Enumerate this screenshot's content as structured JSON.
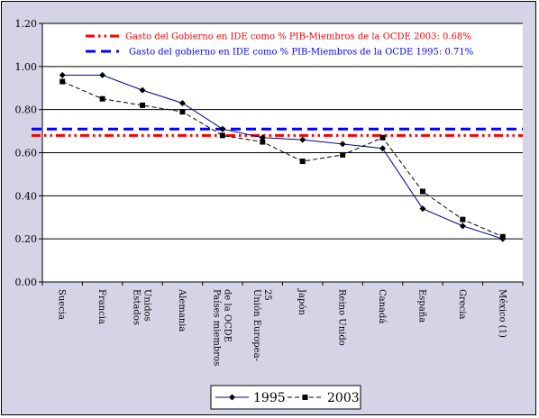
{
  "chart_data": {
    "type": "line",
    "categories": [
      "Suecia",
      "Francia",
      "Estados Unidos",
      "Alemania",
      "Países miembros de la OCDE",
      "Unión Europea-25",
      "Japón",
      "Reino Unido",
      "Canadá",
      "España",
      "Grecia",
      "México (1)"
    ],
    "category_lines": [
      [
        "Suecia"
      ],
      [
        "Francia"
      ],
      [
        "Estados",
        "Unidos"
      ],
      [
        "Alemania"
      ],
      [
        "Países miembros",
        "de la OCDE"
      ],
      [
        "Unión Europea-",
        "25"
      ],
      [
        "Japón"
      ],
      [
        "Reino Unido"
      ],
      [
        "Canadá"
      ],
      [
        "España"
      ],
      [
        "Grecia"
      ],
      [
        "México (1)"
      ]
    ],
    "series": [
      {
        "name": "1995",
        "color": "#00008b",
        "marker": "diamond",
        "style": "solid",
        "values": [
          0.96,
          0.96,
          0.89,
          0.83,
          0.71,
          0.67,
          0.66,
          0.64,
          0.62,
          0.34,
          0.26,
          0.2
        ]
      },
      {
        "name": "2003",
        "color": "#000000",
        "marker": "square",
        "style": "dashed",
        "values": [
          0.93,
          0.85,
          0.82,
          0.79,
          0.68,
          0.65,
          0.56,
          0.59,
          0.67,
          0.42,
          0.29,
          0.21
        ]
      }
    ],
    "reference_lines": [
      {
        "label": "Gasto del Gobierno en IDE como % PIB-Miembros de la OCDE 2003: 0.68%",
        "value": 0.68,
        "color": "#ff0000",
        "style": "dash-dot-dot"
      },
      {
        "label": "Gasto del gobierno en IDE como % PIB-Miembros de la OCDE 1995: 0.71%",
        "value": 0.71,
        "color": "#0000ff",
        "style": "dashed"
      }
    ],
    "yticks": [
      "0.00",
      "0.20",
      "0.40",
      "0.60",
      "0.80",
      "1.00",
      "1.20"
    ],
    "ylim": [
      0,
      1.2
    ],
    "grid": true,
    "legend_position": "bottom"
  }
}
